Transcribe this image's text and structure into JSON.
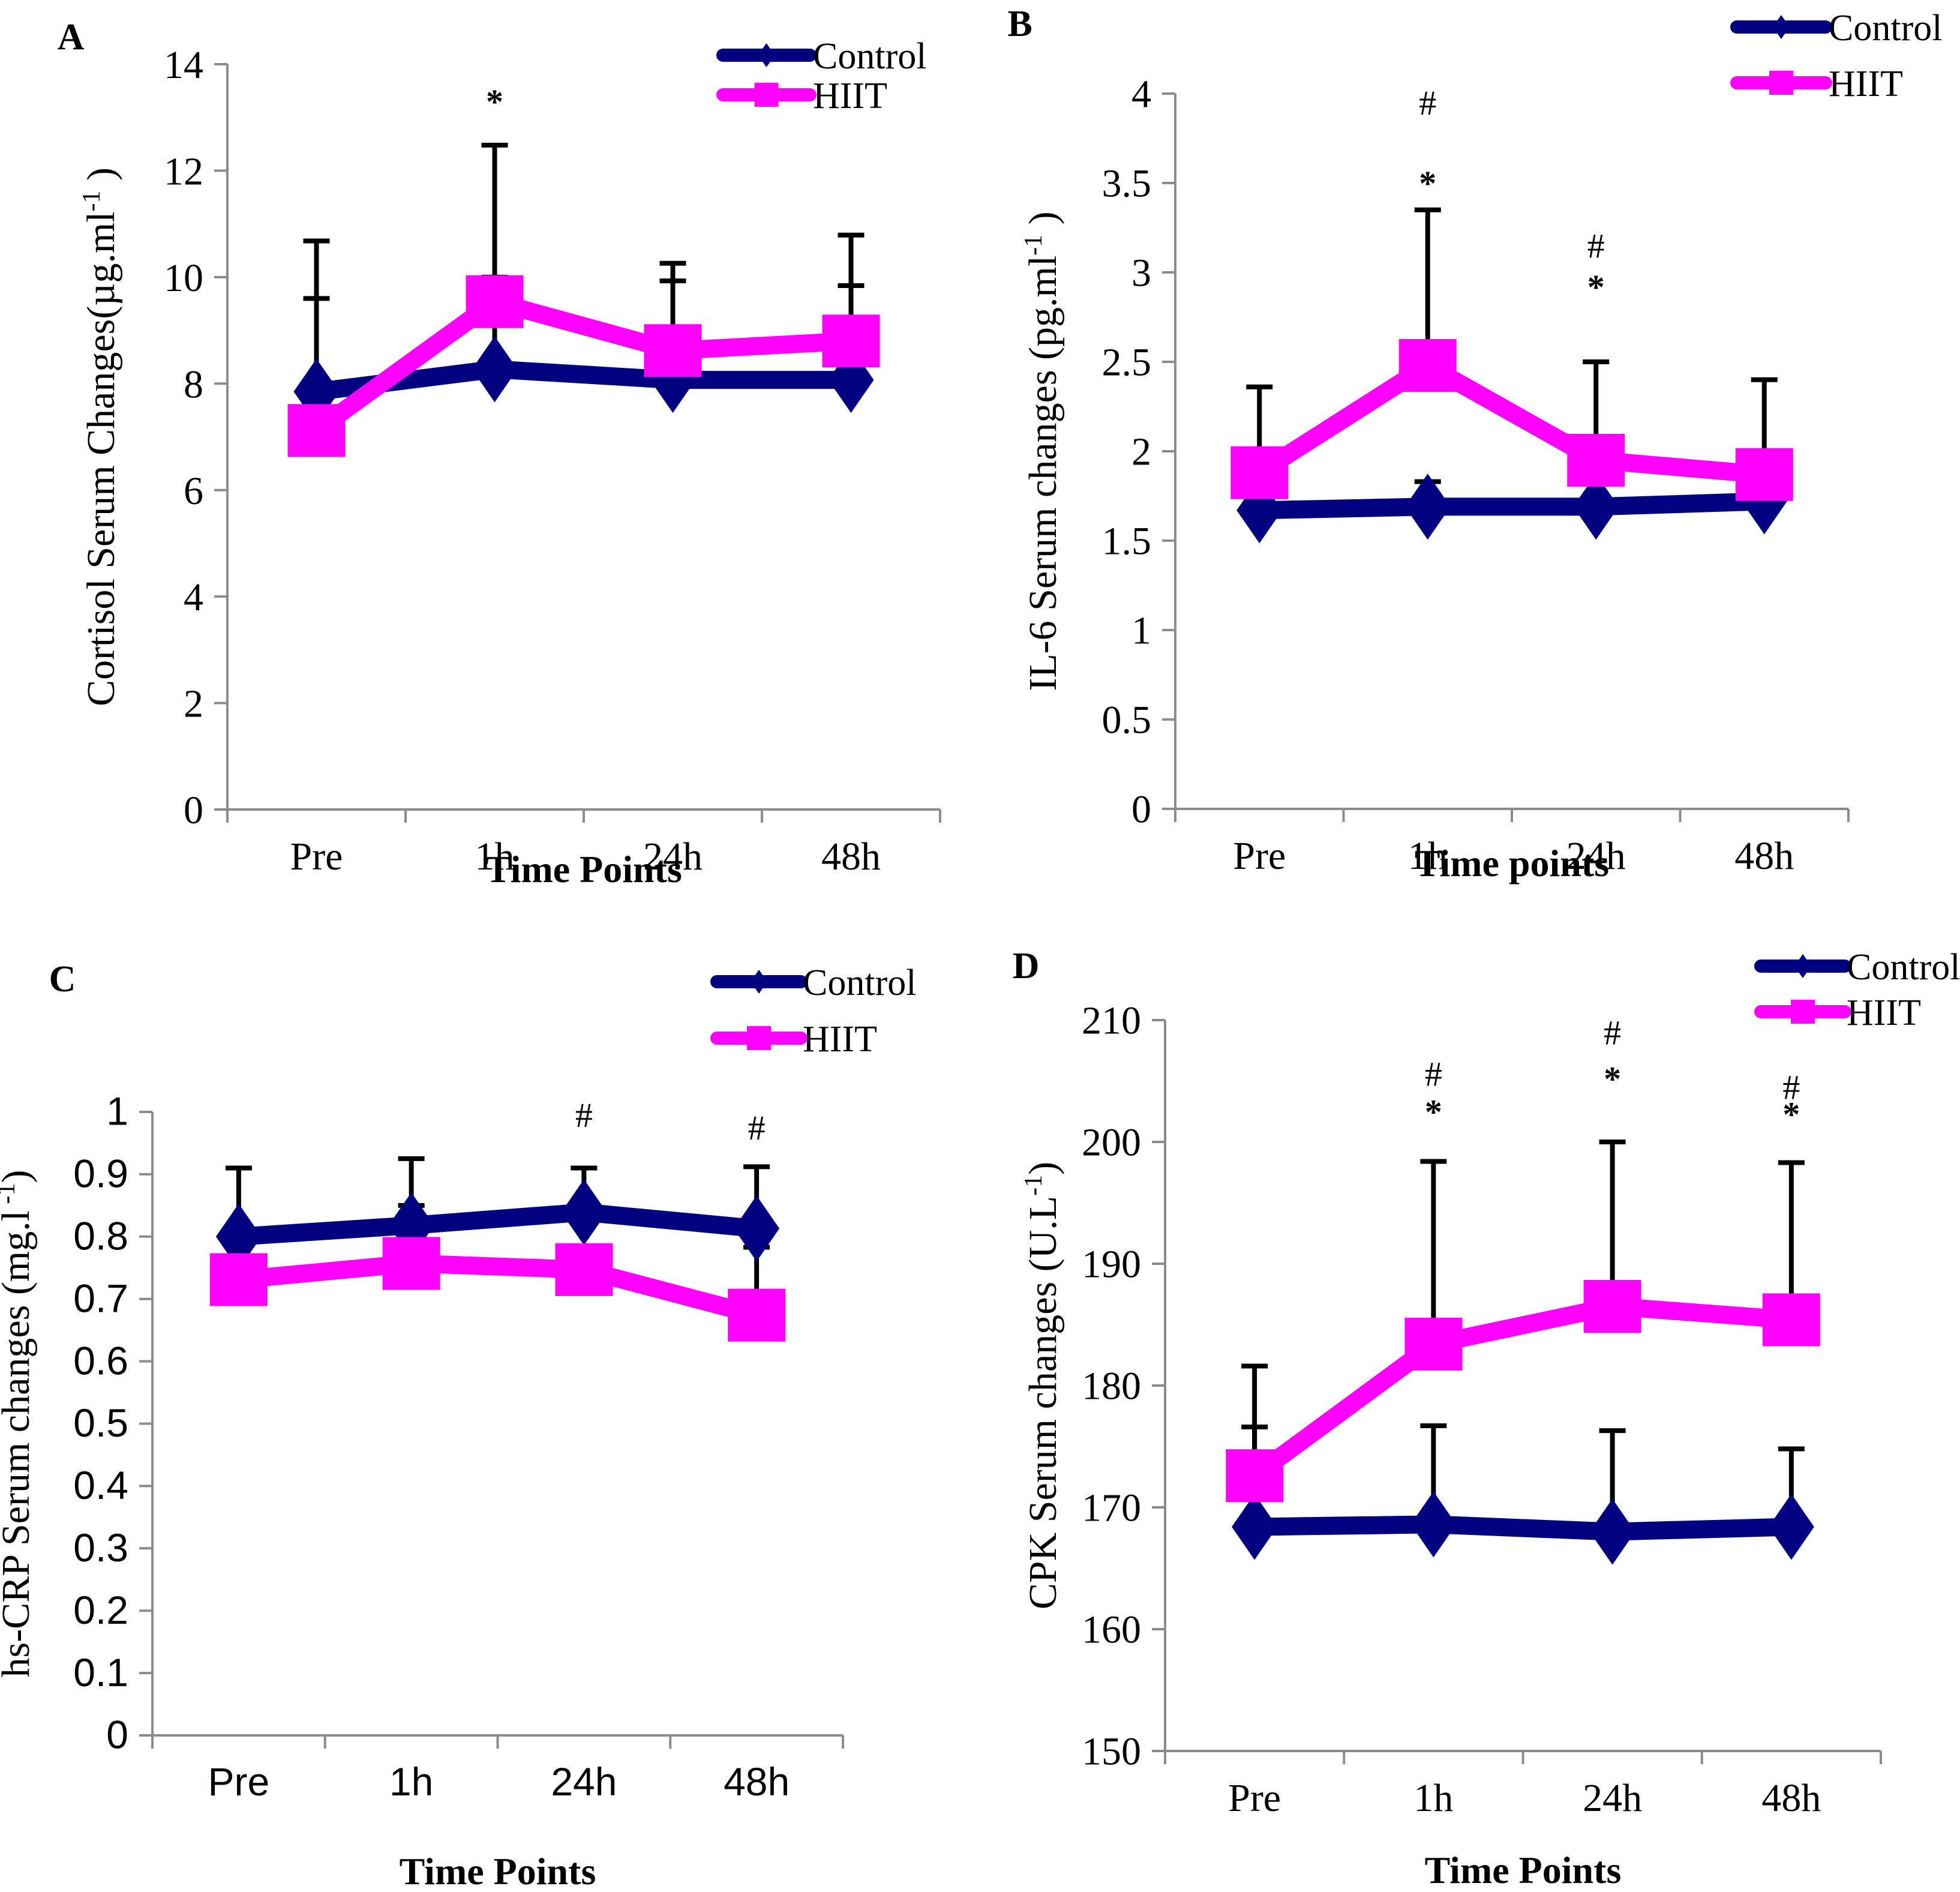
{
  "chart_data": [
    {
      "id": "A",
      "type": "line",
      "panel_label": "A",
      "title": "",
      "xlabel": "Time Points",
      "ylabel": "Cortisol Serum Changes(µg.ml",
      "ylabel_sup": "-1",
      "ylabel_close": " )",
      "categories": [
        "Pre",
        "1h",
        "24h",
        "48h"
      ],
      "ylim": [
        0,
        14
      ],
      "yticks": [
        0,
        2,
        4,
        6,
        8,
        10,
        12,
        14
      ],
      "ytick_labels": [
        "0",
        "2",
        "4",
        "6",
        "8",
        "10",
        "12",
        "14"
      ],
      "tick_font": "serif",
      "grid": false,
      "legend_position": "top-right",
      "series": [
        {
          "name": "Control",
          "color": "#000080",
          "marker": "diamond",
          "values": [
            7.85,
            8.27,
            8.07,
            8.07
          ],
          "error_upper": [
            9.6,
            10.0,
            9.93,
            9.84
          ]
        },
        {
          "name": "HIIT",
          "color": "#FF00FF",
          "marker": "square",
          "values": [
            7.12,
            9.54,
            8.62,
            8.8
          ],
          "error_upper": [
            10.68,
            12.48,
            10.26,
            10.79
          ]
        }
      ],
      "annotations": [
        {
          "category": "1h",
          "text": "*",
          "y": 13.3
        }
      ]
    },
    {
      "id": "B",
      "type": "line",
      "panel_label": "B",
      "title": "",
      "xlabel": "Time points",
      "ylabel": "IL-6 Serum changes (pg.ml",
      "ylabel_sup": "-1",
      "ylabel_close": " )",
      "categories": [
        "Pre",
        "1h",
        "24h",
        "48h"
      ],
      "ylim": [
        0,
        4
      ],
      "yticks": [
        0,
        0.5,
        1,
        1.5,
        2,
        2.5,
        3,
        3.5,
        4
      ],
      "ytick_labels": [
        "0",
        "0.5",
        "1",
        "1.5",
        "2",
        "2.5",
        "3",
        "3.5",
        "4"
      ],
      "tick_font": "serif",
      "grid": false,
      "legend_position": "top-right",
      "series": [
        {
          "name": "Control",
          "color": "#000080",
          "marker": "diamond",
          "values": [
            1.67,
            1.69,
            1.69,
            1.72
          ],
          "error_upper": [
            null,
            1.83,
            null,
            null
          ]
        },
        {
          "name": "HIIT",
          "color": "#FF00FF",
          "marker": "square",
          "values": [
            1.88,
            2.48,
            1.95,
            1.87
          ],
          "error_upper": [
            2.36,
            3.35,
            2.5,
            2.4
          ]
        }
      ],
      "annotations": [
        {
          "category": "1h",
          "text": "#",
          "y": 3.95
        },
        {
          "category": "1h",
          "text": "*",
          "y": 3.5
        },
        {
          "category": "24h",
          "text": "#",
          "y": 3.15
        },
        {
          "category": "24h",
          "text": "*",
          "y": 2.92
        }
      ]
    },
    {
      "id": "C",
      "type": "line",
      "panel_label": "C",
      "title": "",
      "xlabel": "Time Points",
      "ylabel": "hs-CRP Serum changes (mg.l",
      "ylabel_sup": " -1",
      "ylabel_close": ")",
      "categories": [
        "Pre",
        "1h",
        "24h",
        "48h"
      ],
      "ylim": [
        0,
        1
      ],
      "yticks": [
        0,
        0.1,
        0.2,
        0.3,
        0.4,
        0.5,
        0.6,
        0.7,
        0.8,
        0.9,
        1
      ],
      "ytick_labels": [
        "0",
        "0.1",
        "0.2",
        "0.3",
        "0.4",
        "0.5",
        "0.6",
        "0.7",
        "0.8",
        "0.9",
        "1"
      ],
      "tick_font": "sans",
      "grid": false,
      "legend_position": "top-right",
      "series": [
        {
          "name": "Control",
          "color": "#000080",
          "marker": "diamond",
          "values": [
            0.8,
            0.818,
            0.839,
            0.813
          ],
          "error_upper": [
            0.91,
            0.925,
            0.91,
            0.912
          ]
        },
        {
          "name": "HIIT",
          "color": "#FF00FF",
          "marker": "square",
          "values": [
            0.731,
            0.757,
            0.747,
            0.674
          ],
          "error_upper": [
            null,
            0.85,
            null,
            0.783
          ]
        }
      ],
      "annotations": [
        {
          "category": "24h",
          "text": "#",
          "y": 0.995
        },
        {
          "category": "48h",
          "text": "#",
          "y": 0.975
        }
      ]
    },
    {
      "id": "D",
      "type": "line",
      "panel_label": "D",
      "title": "",
      "xlabel": "Time Points",
      "ylabel": "CPK Serum changes (U.L",
      "ylabel_sup": "-1",
      "ylabel_close": ")",
      "categories": [
        "Pre",
        "1h",
        "24h",
        "48h"
      ],
      "ylim": [
        150,
        210
      ],
      "yticks": [
        150,
        160,
        170,
        180,
        190,
        200,
        210
      ],
      "ytick_labels": [
        "150",
        "160",
        "170",
        "180",
        "190",
        "200",
        "210"
      ],
      "tick_font": "serif",
      "grid": false,
      "legend_position": "top-right",
      "series": [
        {
          "name": "Control",
          "color": "#000080",
          "marker": "diamond",
          "values": [
            168.4,
            168.6,
            168.0,
            168.4
          ],
          "error_upper": [
            176.6,
            176.7,
            176.3,
            174.8
          ]
        },
        {
          "name": "HIIT",
          "color": "#FF00FF",
          "marker": "square",
          "values": [
            172.6,
            183.4,
            186.5,
            185.4
          ],
          "error_upper": [
            181.6,
            198.4,
            200.0,
            198.3
          ]
        }
      ],
      "annotations": [
        {
          "category": "1h",
          "text": "#",
          "y": 205.6
        },
        {
          "category": "1h",
          "text": "*",
          "y": 202.5
        },
        {
          "category": "24h",
          "text": "#",
          "y": 209.0
        },
        {
          "category": "24h",
          "text": "*",
          "y": 205.2
        },
        {
          "category": "48h",
          "text": "#",
          "y": 204.5
        },
        {
          "category": "48h",
          "text": "*",
          "y": 202.3
        }
      ]
    }
  ]
}
